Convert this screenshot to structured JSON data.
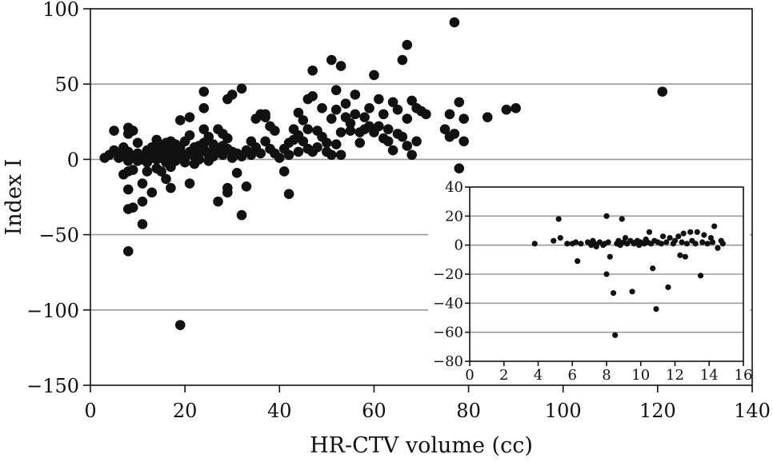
{
  "chart_data": [
    {
      "type": "scatter",
      "title": "",
      "xlabel": "HR-CTV volume (cc)",
      "ylabel": "Index I",
      "xlim": [
        0,
        140
      ],
      "ylim": [
        -150,
        100
      ],
      "xticks": [
        0,
        20,
        40,
        60,
        80,
        100,
        120,
        140
      ],
      "yticks": [
        -150,
        -100,
        -50,
        0,
        50,
        100
      ],
      "ytick_labels": [
        "−150",
        "−100",
        "−50",
        "0",
        "50",
        "100"
      ],
      "grid": "horizontal",
      "point_color": "#111111",
      "series": [
        {
          "points": [
            [
              3,
              1
            ],
            [
              4,
              3
            ],
            [
              5,
              19
            ],
            [
              5,
              6
            ],
            [
              6,
              1
            ],
            [
              6,
              4
            ],
            [
              7,
              -10
            ],
            [
              7,
              8
            ],
            [
              7,
              2
            ],
            [
              8,
              -1
            ],
            [
              8,
              5
            ],
            [
              8,
              -20
            ],
            [
              8,
              -8
            ],
            [
              8,
              21
            ],
            [
              8,
              17
            ],
            [
              8,
              -33
            ],
            [
              8,
              -61
            ],
            [
              9,
              19
            ],
            [
              9,
              2
            ],
            [
              9,
              -32
            ],
            [
              9,
              -7
            ],
            [
              10,
              3
            ],
            [
              10,
              -1
            ],
            [
              10,
              0
            ],
            [
              10,
              11
            ],
            [
              10,
              4
            ],
            [
              11,
              -43
            ],
            [
              11,
              0
            ],
            [
              11,
              -16
            ],
            [
              11,
              -28
            ],
            [
              12,
              -8
            ],
            [
              12,
              5
            ],
            [
              12,
              1
            ],
            [
              12,
              6
            ],
            [
              12,
              -2
            ],
            [
              13,
              3
            ],
            [
              13,
              8
            ],
            [
              13,
              1
            ],
            [
              13,
              -22
            ],
            [
              13,
              5
            ],
            [
              14,
              -6
            ],
            [
              14,
              0
            ],
            [
              14,
              4
            ],
            [
              14,
              13
            ],
            [
              14,
              2
            ],
            [
              15,
              -8
            ],
            [
              15,
              9
            ],
            [
              15,
              1
            ],
            [
              15,
              6
            ],
            [
              15,
              3
            ],
            [
              16,
              -13
            ],
            [
              16,
              -2
            ],
            [
              16,
              11
            ],
            [
              16,
              7
            ],
            [
              16,
              0
            ],
            [
              17,
              -19
            ],
            [
              17,
              3
            ],
            [
              17,
              7
            ],
            [
              17,
              2
            ],
            [
              17,
              12
            ],
            [
              17,
              -5
            ],
            [
              18,
              4
            ],
            [
              18,
              0
            ],
            [
              18,
              10
            ],
            [
              18,
              6
            ],
            [
              18,
              -1
            ],
            [
              19,
              26
            ],
            [
              19,
              8
            ],
            [
              19,
              3
            ],
            [
              19,
              -110
            ],
            [
              19,
              5
            ],
            [
              20,
              1
            ],
            [
              20,
              12
            ],
            [
              20,
              -2
            ],
            [
              21,
              -16
            ],
            [
              21,
              16
            ],
            [
              21,
              28
            ],
            [
              21,
              5
            ],
            [
              22,
              2
            ],
            [
              22,
              8
            ],
            [
              22,
              -3
            ],
            [
              23,
              9
            ],
            [
              23,
              0
            ],
            [
              23,
              4
            ],
            [
              24,
              11
            ],
            [
              24,
              45
            ],
            [
              24,
              34
            ],
            [
              24,
              20
            ],
            [
              24,
              7
            ],
            [
              25,
              3
            ],
            [
              25,
              15
            ],
            [
              25,
              -1
            ],
            [
              26,
              10
            ],
            [
              26,
              6
            ],
            [
              26,
              2
            ],
            [
              27,
              -28
            ],
            [
              27,
              20
            ],
            [
              27,
              5
            ],
            [
              28,
              3
            ],
            [
              28,
              9
            ],
            [
              28,
              17
            ],
            [
              29,
              40
            ],
            [
              29,
              7
            ],
            [
              29,
              -19
            ],
            [
              29,
              -22
            ],
            [
              29,
              14
            ],
            [
              30,
              43
            ],
            [
              30,
              1
            ],
            [
              30,
              5
            ],
            [
              31,
              -9
            ],
            [
              31,
              4
            ],
            [
              32,
              -37
            ],
            [
              32,
              47
            ],
            [
              32,
              2
            ],
            [
              33,
              -18
            ],
            [
              33,
              6
            ],
            [
              34,
              12
            ],
            [
              34,
              3
            ],
            [
              35,
              27
            ],
            [
              35,
              8
            ],
            [
              36,
              30
            ],
            [
              36,
              4
            ],
            [
              37,
              28
            ],
            [
              37,
              30
            ],
            [
              37,
              12
            ],
            [
              38,
              22
            ],
            [
              38,
              7
            ],
            [
              39,
              19
            ],
            [
              39,
              4
            ],
            [
              40,
              1
            ],
            [
              41,
              -8
            ],
            [
              41,
              7
            ],
            [
              42,
              -23
            ],
            [
              42,
              3
            ],
            [
              42,
              11
            ],
            [
              43,
              20
            ],
            [
              43,
              13
            ],
            [
              44,
              31
            ],
            [
              44,
              5
            ],
            [
              44,
              16
            ],
            [
              45,
              26
            ],
            [
              45,
              12
            ],
            [
              46,
              40
            ],
            [
              46,
              20
            ],
            [
              46,
              7
            ],
            [
              47,
              59
            ],
            [
              47,
              42
            ],
            [
              47,
              5
            ],
            [
              48,
              19
            ],
            [
              48,
              8
            ],
            [
              49,
              34
            ],
            [
              49,
              15
            ],
            [
              50,
              11
            ],
            [
              50,
              5
            ],
            [
              51,
              66
            ],
            [
              51,
              27
            ],
            [
              51,
              3
            ],
            [
              52,
              46
            ],
            [
              52,
              33
            ],
            [
              52,
              10
            ],
            [
              53,
              62
            ],
            [
              53,
              18
            ],
            [
              53,
              3
            ],
            [
              54,
              37
            ],
            [
              54,
              28
            ],
            [
              55,
              24
            ],
            [
              55,
              19
            ],
            [
              56,
              43
            ],
            [
              56,
              30
            ],
            [
              57,
              18
            ],
            [
              57,
              11
            ],
            [
              58,
              20
            ],
            [
              58,
              28
            ],
            [
              59,
              34
            ],
            [
              59,
              22
            ],
            [
              60,
              56
            ],
            [
              60,
              18
            ],
            [
              61,
              40
            ],
            [
              61,
              22
            ],
            [
              62,
              30
            ],
            [
              62,
              14
            ],
            [
              63,
              20
            ],
            [
              63,
              12
            ],
            [
              64,
              38
            ],
            [
              64,
              6
            ],
            [
              65,
              33
            ],
            [
              65,
              17
            ],
            [
              66,
              66
            ],
            [
              66,
              15
            ],
            [
              67,
              76
            ],
            [
              67,
              27
            ],
            [
              67,
              9
            ],
            [
              68,
              39
            ],
            [
              68,
              3
            ],
            [
              69,
              34
            ],
            [
              69,
              12
            ],
            [
              70,
              32
            ],
            [
              71,
              30
            ],
            [
              75,
              20
            ],
            [
              76,
              30
            ],
            [
              76,
              15
            ],
            [
              77,
              91
            ],
            [
              77,
              17
            ],
            [
              78,
              38
            ],
            [
              78,
              -6
            ],
            [
              79,
              12
            ],
            [
              79,
              27
            ],
            [
              84,
              28
            ],
            [
              88,
              33
            ],
            [
              90,
              34
            ],
            [
              121,
              45
            ]
          ]
        }
      ],
      "inset": {
        "type": "scatter",
        "xlim": [
          0,
          16
        ],
        "ylim": [
          -80,
          40
        ],
        "xticks": [
          0,
          2,
          4,
          6,
          8,
          10,
          12,
          14,
          16
        ],
        "yticks": [
          -80,
          -60,
          -40,
          -20,
          0,
          20,
          40
        ],
        "ytick_labels": [
          "−80",
          "−60",
          "−40",
          "−20",
          "0",
          "20",
          "40"
        ],
        "grid": "horizontal",
        "points": [
          [
            3.8,
            1
          ],
          [
            4.9,
            3
          ],
          [
            5.2,
            18
          ],
          [
            5.3,
            5
          ],
          [
            5.7,
            1
          ],
          [
            6.0,
            1
          ],
          [
            6.2,
            2
          ],
          [
            6.3,
            -11
          ],
          [
            6.5,
            1
          ],
          [
            6.9,
            2
          ],
          [
            7.1,
            0
          ],
          [
            7.2,
            3
          ],
          [
            7.3,
            1
          ],
          [
            7.4,
            -1
          ],
          [
            7.6,
            2
          ],
          [
            7.8,
            0
          ],
          [
            7.9,
            1
          ],
          [
            8.0,
            20
          ],
          [
            8.0,
            -20
          ],
          [
            8.1,
            2
          ],
          [
            8.2,
            -8
          ],
          [
            8.4,
            -33
          ],
          [
            8.5,
            -62
          ],
          [
            8.6,
            1
          ],
          [
            8.7,
            3
          ],
          [
            8.8,
            0
          ],
          [
            8.9,
            18
          ],
          [
            9.0,
            2
          ],
          [
            9.1,
            5
          ],
          [
            9.2,
            1
          ],
          [
            9.4,
            3
          ],
          [
            9.5,
            -32
          ],
          [
            9.6,
            1
          ],
          [
            9.7,
            2
          ],
          [
            9.8,
            3
          ],
          [
            9.9,
            0
          ],
          [
            10.0,
            2
          ],
          [
            10.2,
            1
          ],
          [
            10.3,
            4
          ],
          [
            10.4,
            2
          ],
          [
            10.5,
            9
          ],
          [
            10.6,
            1
          ],
          [
            10.7,
            -16
          ],
          [
            10.8,
            3
          ],
          [
            10.9,
            -44
          ],
          [
            11.0,
            2
          ],
          [
            11.2,
            1
          ],
          [
            11.3,
            6
          ],
          [
            11.5,
            2
          ],
          [
            11.6,
            -29
          ],
          [
            11.7,
            5
          ],
          [
            11.9,
            1
          ],
          [
            12.0,
            3
          ],
          [
            12.2,
            6
          ],
          [
            12.3,
            -7
          ],
          [
            12.4,
            2
          ],
          [
            12.5,
            8
          ],
          [
            12.6,
            -8
          ],
          [
            12.7,
            1
          ],
          [
            12.9,
            9
          ],
          [
            13.0,
            3
          ],
          [
            13.2,
            1
          ],
          [
            13.3,
            9
          ],
          [
            13.5,
            -21
          ],
          [
            13.6,
            2
          ],
          [
            13.7,
            7
          ],
          [
            13.9,
            1
          ],
          [
            14.1,
            5
          ],
          [
            14.2,
            2
          ],
          [
            14.3,
            13
          ],
          [
            14.5,
            -2
          ],
          [
            14.7,
            3
          ],
          [
            14.8,
            1
          ]
        ]
      }
    }
  ]
}
